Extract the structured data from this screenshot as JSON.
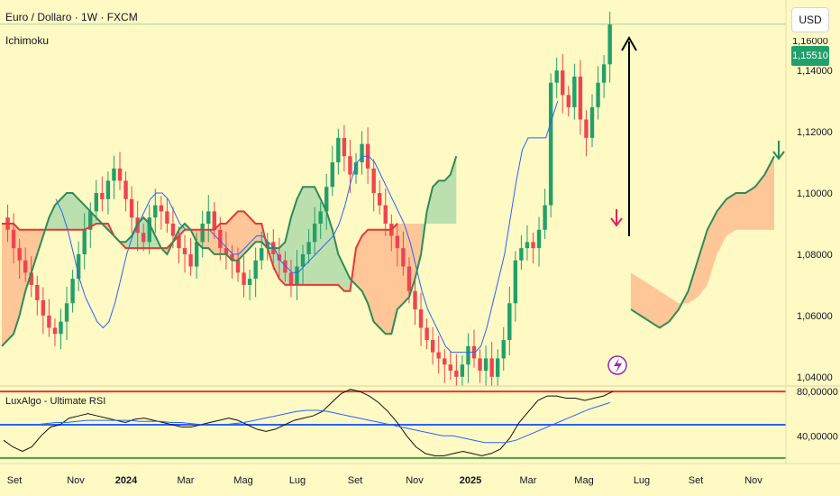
{
  "header": {
    "title": "Euro / Dollaro · 1W · FXCM",
    "indicator": "Ichimoku",
    "rsi_label": "LuxAlgo - Ultimate RSI"
  },
  "currency_button": "USD",
  "last_price": "1,15510",
  "cut_label": "1,16000",
  "icons": {
    "flash": "lightning-icon",
    "arrow_up": "arrow-up-icon",
    "arrow_down": "arrow-down-icon"
  },
  "colors": {
    "background": "#fff9c4",
    "up_candle": "#22a06b",
    "down_candle": "#ef4451",
    "kijun": "#e53935",
    "tenkan": "#2962ff",
    "chikou": "#2e8b57",
    "cloud_bull": "#a5d6a7",
    "cloud_bear": "#ffb48a",
    "rsi_upper": "#e53935",
    "rsi_mid": "#2962ff",
    "rsi_lower": "#43a047"
  },
  "chart_data": [
    {
      "type": "candlestick",
      "title": "Euro / Dollaro · 1W · FXCM",
      "y_ticks": [
        "1,14000",
        "1,12000",
        "1,10000",
        "1,08000",
        "1,06000",
        "1,04000"
      ],
      "ylim": [
        1.037,
        1.163
      ],
      "x_ticks": [
        "Set",
        "Nov",
        "2024",
        "Mar",
        "Mag",
        "Lug",
        "Set",
        "Nov",
        "2025",
        "Mar",
        "Mag",
        "Lug",
        "Set",
        "Nov"
      ],
      "bold_x_ticks": [
        "2024",
        "2025"
      ],
      "close_path": [
        1.092,
        1.088,
        1.082,
        1.078,
        1.074,
        1.07,
        1.065,
        1.06,
        1.056,
        1.054,
        1.058,
        1.064,
        1.072,
        1.08,
        1.088,
        1.094,
        1.1,
        1.098,
        1.104,
        1.108,
        1.104,
        1.098,
        1.092,
        1.087,
        1.084,
        1.092,
        1.096,
        1.094,
        1.09,
        1.086,
        1.082,
        1.08,
        1.076,
        1.084,
        1.09,
        1.094,
        1.088,
        1.082,
        1.08,
        1.078,
        1.074,
        1.07,
        1.072,
        1.078,
        1.082,
        1.084,
        1.08,
        1.078,
        1.074,
        1.07,
        1.076,
        1.08,
        1.084,
        1.09,
        1.094,
        1.102,
        1.11,
        1.118,
        1.112,
        1.106,
        1.11,
        1.116,
        1.108,
        1.1,
        1.096,
        1.09,
        1.086,
        1.082,
        1.076,
        1.068,
        1.062,
        1.056,
        1.052,
        1.048,
        1.046,
        1.044,
        1.042,
        1.04,
        1.044,
        1.05,
        1.046,
        1.042,
        1.046,
        1.04,
        1.046,
        1.052,
        1.064,
        1.078,
        1.082,
        1.084,
        1.082,
        1.088,
        1.096,
        1.136,
        1.14,
        1.132,
        1.128,
        1.138,
        1.124,
        1.118,
        1.128,
        1.136,
        1.142,
        1.155
      ],
      "tenkan_sen": [
        1.098,
        1.094,
        1.088,
        1.08,
        1.072,
        1.066,
        1.062,
        1.058,
        1.056,
        1.058,
        1.064,
        1.072,
        1.08,
        1.086,
        1.09,
        1.094,
        1.098,
        1.1,
        1.1,
        1.098,
        1.094,
        1.09,
        1.088,
        1.088,
        1.088,
        1.088,
        1.088,
        1.086,
        1.084,
        1.082,
        1.08,
        1.08,
        1.082,
        1.084,
        1.086,
        1.086,
        1.084,
        1.082,
        1.078,
        1.076,
        1.074,
        1.074,
        1.076,
        1.078,
        1.08,
        1.082,
        1.084,
        1.086,
        1.09,
        1.096,
        1.104,
        1.11,
        1.112,
        1.112,
        1.11,
        1.106,
        1.102,
        1.098,
        1.094,
        1.09,
        1.084,
        1.076,
        1.068,
        1.062,
        1.058,
        1.054,
        1.05,
        1.048,
        1.048,
        1.048,
        1.048,
        1.048,
        1.05,
        1.056,
        1.064,
        1.072,
        1.08,
        1.092,
        1.104,
        1.114,
        1.118,
        1.118,
        1.118,
        1.118,
        1.124,
        1.13
      ],
      "kijun_sen": [
        1.09,
        1.09,
        1.09,
        1.088,
        1.088,
        1.088,
        1.088,
        1.088,
        1.088,
        1.088,
        1.088,
        1.088,
        1.088,
        1.088,
        1.088,
        1.089,
        1.09,
        1.09,
        1.09,
        1.086,
        1.084,
        1.082,
        1.082,
        1.082,
        1.082,
        1.082,
        1.082,
        1.082,
        1.082,
        1.084,
        1.086,
        1.088,
        1.088,
        1.088,
        1.088,
        1.088,
        1.088,
        1.09,
        1.09,
        1.092,
        1.094,
        1.094,
        1.092,
        1.09,
        1.09,
        1.082,
        1.076,
        1.072,
        1.07,
        1.07,
        1.07,
        1.07,
        1.07,
        1.07,
        1.07,
        1.07,
        1.07,
        1.07,
        1.068,
        1.068,
        1.082,
        1.086,
        1.088,
        1.088,
        1.088,
        1.088,
        1.088,
        1.09
      ],
      "chikou_span": [
        1.05,
        1.052,
        1.054,
        1.06,
        1.068,
        1.074,
        1.08,
        1.086,
        1.092,
        1.096,
        1.098,
        1.1,
        1.1,
        1.098,
        1.096,
        1.094,
        1.092,
        1.09,
        1.088,
        1.086,
        1.084,
        1.084,
        1.086,
        1.09,
        1.092,
        1.09,
        1.086,
        1.082,
        1.08,
        1.084,
        1.088,
        1.09,
        1.088,
        1.084,
        1.082,
        1.082,
        1.08,
        1.08,
        1.08,
        1.078,
        1.078,
        1.08,
        1.082,
        1.084,
        1.084,
        1.082,
        1.082,
        1.082,
        1.084,
        1.092,
        1.098,
        1.102,
        1.102,
        1.102,
        1.098,
        1.094,
        1.088,
        1.08,
        1.076,
        1.072,
        1.07,
        1.068,
        1.064,
        1.058,
        1.056,
        1.054,
        1.054,
        1.062,
        1.064,
        1.066,
        1.072,
        1.08,
        1.094,
        1.102,
        1.104,
        1.104,
        1.106,
        1.112
      ],
      "annotations": [
        "arrow-up (black)",
        "arrow-down (red)",
        "arrow-down (green)",
        "lightning marker"
      ]
    },
    {
      "type": "line",
      "title": "LuxAlgo - Ultimate RSI",
      "y_ticks": [
        "80,00000",
        "40,00000"
      ],
      "levels": [
        80,
        50,
        20
      ],
      "ylim": [
        15,
        85
      ],
      "rsi": [
        36,
        30,
        26,
        30,
        40,
        48,
        50,
        56,
        58,
        60,
        58,
        56,
        54,
        52,
        55,
        56,
        54,
        52,
        50,
        48,
        48,
        50,
        52,
        54,
        56,
        54,
        50,
        46,
        44,
        46,
        50,
        54,
        56,
        58,
        62,
        70,
        78,
        82,
        80,
        76,
        70,
        62,
        52,
        40,
        30,
        24,
        22,
        22,
        24,
        26,
        24,
        22,
        24,
        28,
        38,
        52,
        62,
        72,
        76,
        76,
        74,
        74,
        72,
        74,
        76,
        80
      ],
      "signal": [
        50,
        50,
        50,
        50,
        51,
        52,
        52,
        53,
        54,
        54,
        54,
        54,
        54,
        53,
        53,
        53,
        52,
        52,
        51,
        50,
        50,
        50,
        51,
        52,
        54,
        56,
        58,
        60,
        62,
        63,
        63,
        62,
        60,
        58,
        56,
        54,
        52,
        50,
        48,
        46,
        44,
        42,
        40,
        40,
        38,
        36,
        34,
        34,
        34,
        36,
        40,
        44,
        48,
        52,
        56,
        60,
        64,
        67,
        70
      ]
    }
  ]
}
